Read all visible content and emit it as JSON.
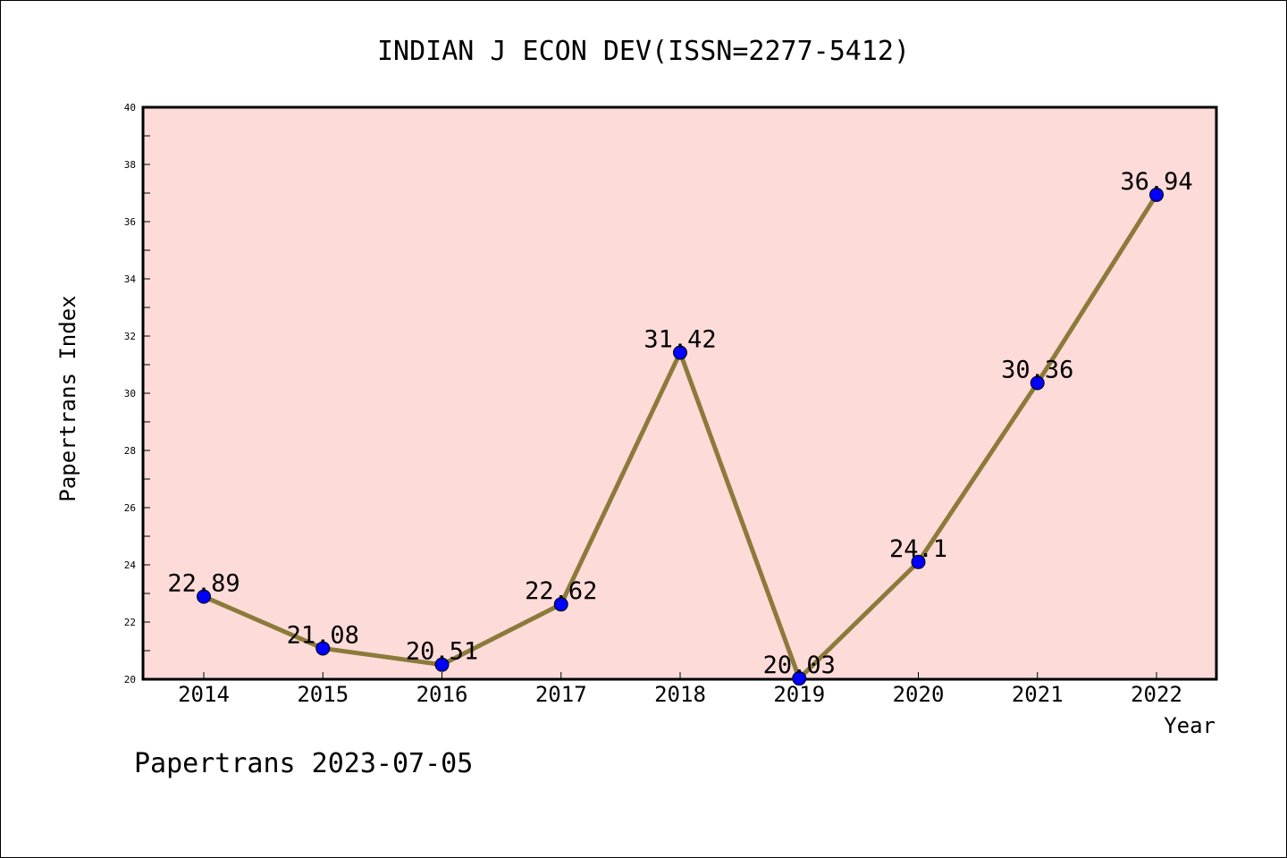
{
  "chart_data": {
    "type": "line",
    "title": "INDIAN J ECON DEV(ISSN=2277-5412)",
    "xlabel": "Year",
    "ylabel": "Papertrans Index",
    "categories": [
      "2014",
      "2015",
      "2016",
      "2017",
      "2018",
      "2019",
      "2020",
      "2021",
      "2022"
    ],
    "values": [
      22.89,
      21.08,
      20.51,
      22.62,
      31.42,
      20.03,
      24.1,
      30.36,
      36.94
    ],
    "data_labels": [
      "22.89",
      "21.08",
      "20.51",
      "22.62",
      "31.42",
      "20.03",
      "24.1",
      "30.36",
      "36.94"
    ],
    "ylim": [
      20,
      40
    ],
    "yticks": [
      20,
      22,
      24,
      26,
      28,
      30,
      32,
      34,
      36,
      38,
      40
    ],
    "grid": false,
    "colors": {
      "plot_background": "#fddbd9",
      "line": "#8c7a3a",
      "marker": "#0000ff"
    }
  },
  "footer": "Papertrans 2023-07-05"
}
